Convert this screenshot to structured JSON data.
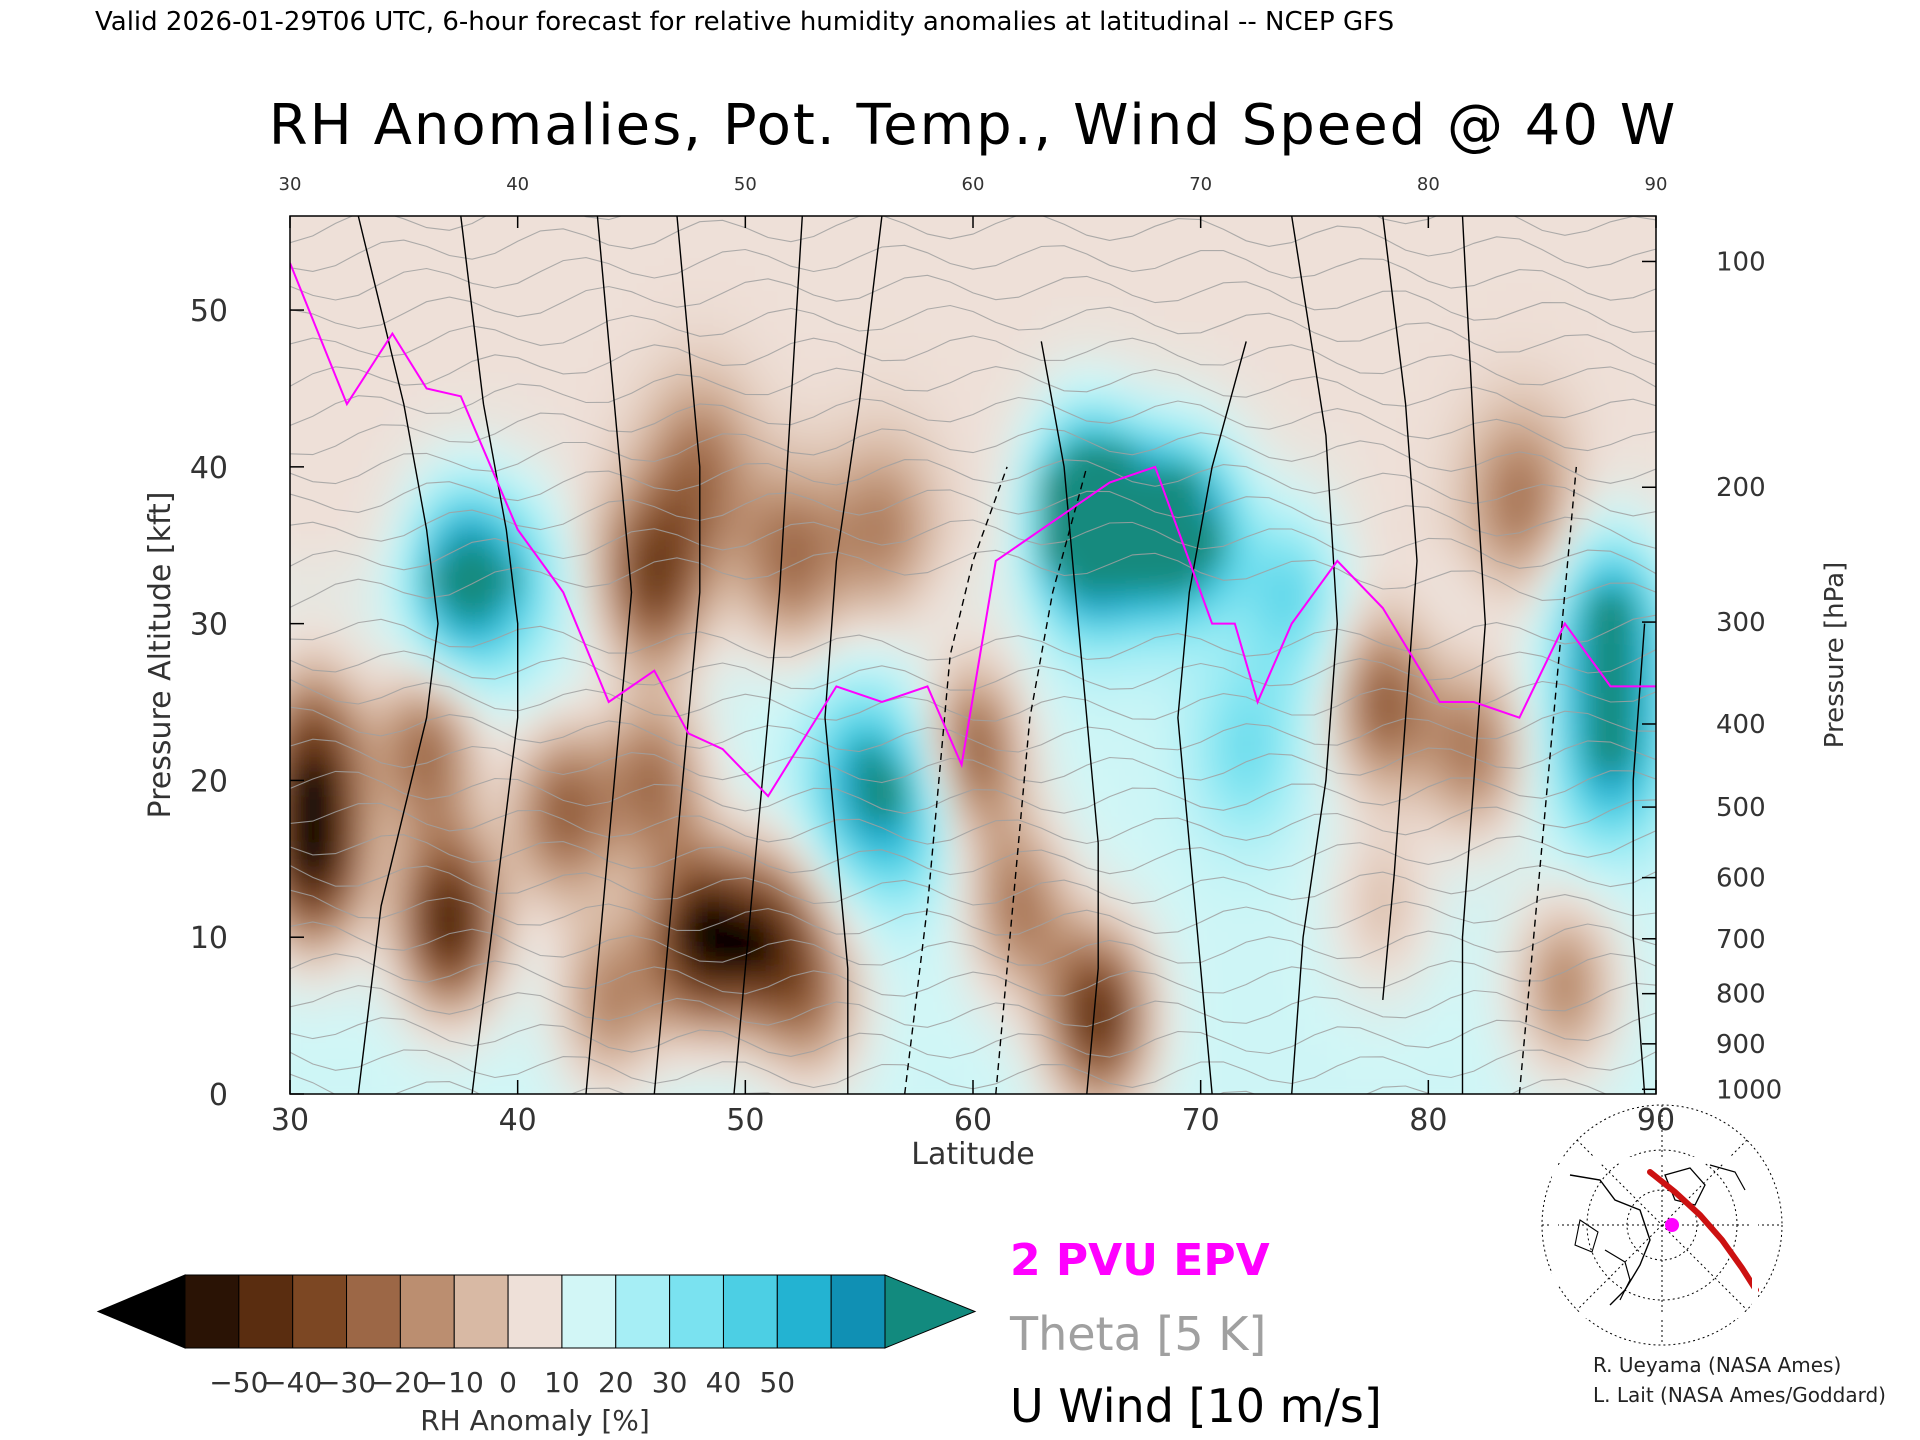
{
  "header": "Valid 2026-01-29T06 UTC, 6-hour forecast for relative humidity anomalies at latitudinal -- NCEP GFS",
  "chart_data": {
    "type": "heatmap",
    "title": "RH Anomalies, Pot. Temp., Wind Speed @ 40 W",
    "xlabel": "Latitude",
    "ylabel": "Pressure Altitude [kft]",
    "y2label": "Pressure [hPa]",
    "xlim": [
      30,
      90
    ],
    "ylim": [
      0,
      56
    ],
    "x_ticks": [
      30,
      40,
      50,
      60,
      70,
      80,
      90
    ],
    "x_ticks_top": [
      30,
      40,
      50,
      60,
      70,
      80,
      90
    ],
    "y_ticks": [
      0,
      10,
      20,
      30,
      40,
      50
    ],
    "pressure_ticks": [
      {
        "label": "100",
        "kft": 53.1
      },
      {
        "label": "200",
        "kft": 38.7
      },
      {
        "label": "300",
        "kft": 30.1
      },
      {
        "label": "400",
        "kft": 23.6
      },
      {
        "label": "500",
        "kft": 18.3
      },
      {
        "label": "600",
        "kft": 13.8
      },
      {
        "label": "700",
        "kft": 9.9
      },
      {
        "label": "800",
        "kft": 6.4
      },
      {
        "label": "900",
        "kft": 3.2
      },
      {
        "label": "1000",
        "kft": 0.3
      }
    ],
    "rh_field": {
      "background_upper": 0,
      "background_lower": 10,
      "blobs": [
        {
          "lat": 40,
          "kft": 33,
          "a": 25
        },
        {
          "lat": 37.5,
          "kft": 33,
          "a": 60
        },
        {
          "lat": 46,
          "kft": 33,
          "a": -42
        },
        {
          "lat": 52,
          "kft": 34,
          "a": -28
        },
        {
          "lat": 56,
          "kft": 36,
          "a": -22
        },
        {
          "lat": 48,
          "kft": 40,
          "a": -25
        },
        {
          "lat": 31,
          "kft": 22,
          "a": -40
        },
        {
          "lat": 31,
          "kft": 15,
          "a": -55
        },
        {
          "lat": 37,
          "kft": 11,
          "a": -55
        },
        {
          "lat": 36,
          "kft": 22,
          "a": -32
        },
        {
          "lat": 42,
          "kft": 18,
          "a": -35
        },
        {
          "lat": 46,
          "kft": 20,
          "a": -30
        },
        {
          "lat": 44,
          "kft": 6,
          "a": -25
        },
        {
          "lat": 48,
          "kft": 10,
          "a": -55
        },
        {
          "lat": 51,
          "kft": 10,
          "a": -40
        },
        {
          "lat": 53,
          "kft": 6,
          "a": -22
        },
        {
          "lat": 55,
          "kft": 20,
          "a": 40
        },
        {
          "lat": 57,
          "kft": 18,
          "a": 32
        },
        {
          "lat": 60,
          "kft": 22,
          "a": -35
        },
        {
          "lat": 62,
          "kft": 12,
          "a": -28
        },
        {
          "lat": 65.5,
          "kft": 5,
          "a": -50
        },
        {
          "lat": 65,
          "kft": 35,
          "a": 48
        },
        {
          "lat": 65,
          "kft": 38,
          "a": 55
        },
        {
          "lat": 68,
          "kft": 36,
          "a": 55
        },
        {
          "lat": 70,
          "kft": 36,
          "a": 40
        },
        {
          "lat": 72,
          "kft": 22,
          "a": 25
        },
        {
          "lat": 74,
          "kft": 32,
          "a": 30
        },
        {
          "lat": 78,
          "kft": 25,
          "a": -35
        },
        {
          "lat": 78,
          "kft": 12,
          "a": -12
        },
        {
          "lat": 82,
          "kft": 22,
          "a": -28
        },
        {
          "lat": 84,
          "kft": 38,
          "a": -25
        },
        {
          "lat": 88,
          "kft": 22,
          "a": 50
        },
        {
          "lat": 88,
          "kft": 30,
          "a": 55
        },
        {
          "lat": 86,
          "kft": 7,
          "a": -25
        }
      ]
    },
    "epv_2pvu": {
      "lat": [
        30,
        32.5,
        34.5,
        36,
        37.5,
        40,
        42,
        44,
        46,
        47.5,
        49,
        51,
        54,
        56,
        58,
        59.5,
        61,
        63,
        66,
        68,
        69,
        70.5,
        71.5,
        72.5,
        74,
        76,
        78,
        80.5,
        82,
        84,
        86,
        88,
        90
      ],
      "kft": [
        53,
        44,
        48.5,
        45,
        44.5,
        36,
        32,
        25,
        27,
        23,
        22,
        19,
        26,
        25,
        26,
        21,
        34,
        36,
        39,
        40,
        36,
        30,
        30,
        25,
        30,
        34,
        31,
        25,
        25,
        24,
        30,
        26,
        26
      ]
    },
    "theta_contours_K": [
      280,
      285,
      290,
      295,
      300,
      305,
      310,
      315,
      320,
      325,
      330,
      335,
      340,
      345,
      350,
      355,
      360,
      365,
      370,
      375,
      380,
      385,
      390,
      395,
      400,
      405,
      410,
      415,
      420
    ],
    "u_wind_isotachs": [
      {
        "dashed": false,
        "lat": [
          33,
          33.5,
          34,
          35,
          36,
          36.5,
          36,
          35.5,
          35,
          34,
          33
        ],
        "kft": [
          0,
          6,
          12,
          18,
          24,
          30,
          36,
          40,
          44,
          50,
          56
        ]
      },
      {
        "dashed": false,
        "lat": [
          38,
          38.5,
          39,
          39.5,
          40,
          40,
          39.5,
          38.5,
          38,
          37.5
        ],
        "kft": [
          0,
          6,
          12,
          18,
          24,
          30,
          36,
          44,
          50,
          56
        ]
      },
      {
        "dashed": false,
        "lat": [
          43,
          43.5,
          44,
          44.5,
          45,
          44.5,
          44,
          43.5
        ],
        "kft": [
          0,
          8,
          16,
          24,
          32,
          40,
          48,
          56
        ]
      },
      {
        "dashed": false,
        "lat": [
          46,
          46.5,
          47,
          47.5,
          48,
          48,
          47.5,
          47
        ],
        "kft": [
          0,
          8,
          16,
          24,
          32,
          40,
          48,
          56
        ]
      },
      {
        "dashed": false,
        "lat": [
          49.5,
          50,
          50.5,
          51,
          51.5,
          52,
          52.5
        ],
        "kft": [
          0,
          8,
          16,
          24,
          32,
          44,
          56
        ]
      },
      {
        "dashed": false,
        "lat": [
          54.5,
          54.5,
          54,
          53.5,
          54,
          55,
          56
        ],
        "kft": [
          0,
          8,
          16,
          24,
          34,
          44,
          56
        ]
      },
      {
        "dashed": true,
        "lat": [
          57,
          57.5,
          58,
          58.5,
          59,
          60,
          61.5
        ],
        "kft": [
          0,
          6,
          12,
          20,
          28,
          34,
          40
        ]
      },
      {
        "dashed": true,
        "lat": [
          61,
          61.5,
          62,
          62.5,
          63.5,
          65
        ],
        "kft": [
          0,
          8,
          16,
          24,
          32,
          40
        ]
      },
      {
        "dashed": false,
        "lat": [
          65,
          65.5,
          65.5,
          65,
          64.5,
          64,
          63
        ],
        "kft": [
          0,
          8,
          16,
          24,
          32,
          40,
          48
        ]
      },
      {
        "dashed": false,
        "lat": [
          70.5,
          70,
          69.5,
          69,
          69.5,
          70.5,
          72
        ],
        "kft": [
          0,
          8,
          16,
          24,
          32,
          40,
          48
        ]
      },
      {
        "dashed": false,
        "lat": [
          74,
          74.5,
          75.5,
          76,
          75.5,
          74
        ],
        "kft": [
          0,
          10,
          20,
          30,
          42,
          56
        ]
      },
      {
        "dashed": false,
        "lat": [
          78,
          78.5,
          79,
          79.5,
          79,
          78
        ],
        "kft": [
          6,
          14,
          24,
          34,
          44,
          56
        ]
      },
      {
        "dashed": false,
        "lat": [
          81.5,
          81.5,
          82,
          82.5,
          82,
          81.5
        ],
        "kft": [
          0,
          10,
          20,
          30,
          42,
          56
        ]
      },
      {
        "dashed": true,
        "lat": [
          84,
          84.5,
          85,
          85.5,
          86,
          86.5
        ],
        "kft": [
          0,
          8,
          16,
          24,
          32,
          40
        ]
      },
      {
        "dashed": false,
        "lat": [
          89.5,
          89,
          89,
          89.5
        ],
        "kft": [
          0,
          10,
          20,
          30
        ]
      }
    ]
  },
  "colorbar": {
    "label": "RH Anomaly [%]",
    "ticks": [
      "−50",
      "−40",
      "−30",
      "−20",
      "−10",
      "0",
      "10",
      "20",
      "30",
      "40",
      "50"
    ],
    "colors": [
      "#2a1305",
      "#5a2d10",
      "#7c4723",
      "#9c6746",
      "#bb8e70",
      "#d8b9a4",
      "#eee0d8",
      "#d2f6f6",
      "#a6eef5",
      "#7ae2f0",
      "#4ccfe4",
      "#23b3d2",
      "#1090b4"
    ],
    "under_color": "#000000",
    "over_color": "#128a7e"
  },
  "legend": {
    "epv": "2 PVU EPV",
    "theta": "Theta [5 K]",
    "uwind": "U Wind [10 m/s]",
    "epv_color": "#ff00ff",
    "theta_color": "#a0a0a0",
    "uwind_color": "#000000"
  },
  "credits": {
    "line1": "R. Ueyama (NASA Ames)",
    "line2": "L. Lait (NASA Ames/Goddard)"
  },
  "locator_map": {
    "icon": "polar-globe-icon",
    "track_color": "#cc1111",
    "marker_color": "#ff00ff"
  }
}
